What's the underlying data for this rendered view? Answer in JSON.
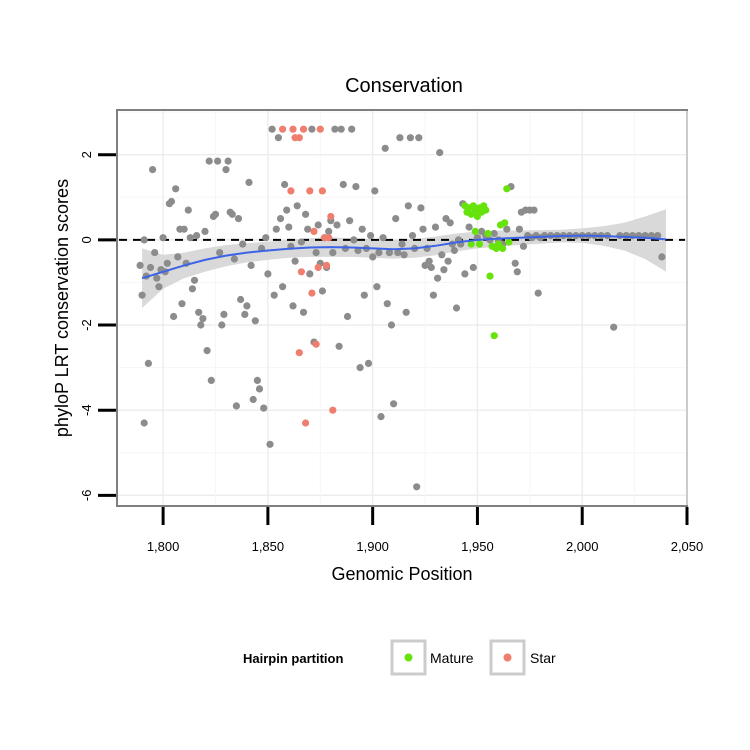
{
  "chart_data": {
    "type": "scatter",
    "title": "Conservation",
    "xlabel": "Genomic Position",
    "ylabel": "phyloP LRT conservation scores",
    "xlim": [
      1778,
      2050
    ],
    "ylim": [
      -6.25,
      3.05
    ],
    "x_ticks": [
      1800,
      1850,
      1900,
      1950,
      2000,
      2050
    ],
    "x_tick_labels": [
      "1,800",
      "1,850",
      "1,900",
      "1,950",
      "2,000",
      "2,050"
    ],
    "y_ticks": [
      -6,
      -4,
      -2,
      0,
      2
    ],
    "y_tick_labels": [
      "-6",
      "-4",
      "-2",
      "0",
      "2"
    ],
    "reference_line": {
      "y": 0,
      "style": "dashed"
    },
    "legend": {
      "title": "Hairpin partition",
      "entries": [
        {
          "label": "Mature",
          "color": "#66e30b"
        },
        {
          "label": "Star",
          "color": "#f07e6e"
        }
      ]
    },
    "colors": {
      "other": "#8c8c8c",
      "mature": "#66e30b",
      "star": "#f07e6e",
      "smooth": "#3d63e6",
      "band": "#d2d2d2"
    },
    "series": [
      {
        "name": "Other",
        "points": [
          [
            1789,
            -0.6
          ],
          [
            1790,
            -1.3
          ],
          [
            1791,
            0.0
          ],
          [
            1791,
            -4.3
          ],
          [
            1792,
            -0.85
          ],
          [
            1793,
            -2.9
          ],
          [
            1794,
            -0.65
          ],
          [
            1795,
            1.65
          ],
          [
            1796,
            -0.3
          ],
          [
            1797,
            -0.9
          ],
          [
            1798,
            -1.1
          ],
          [
            1799,
            -0.7
          ],
          [
            1800,
            0.05
          ],
          [
            1801,
            -0.75
          ],
          [
            1802,
            -0.55
          ],
          [
            1803,
            0.85
          ],
          [
            1804,
            0.9
          ],
          [
            1805,
            -1.8
          ],
          [
            1806,
            1.2
          ],
          [
            1807,
            -0.4
          ],
          [
            1808,
            0.25
          ],
          [
            1809,
            -1.5
          ],
          [
            1810,
            0.25
          ],
          [
            1811,
            -0.55
          ],
          [
            1812,
            0.7
          ],
          [
            1813,
            0.05
          ],
          [
            1814,
            -1.15
          ],
          [
            1815,
            -0.95
          ],
          [
            1816,
            0.1
          ],
          [
            1817,
            -1.7
          ],
          [
            1818,
            -2.0
          ],
          [
            1819,
            -1.85
          ],
          [
            1820,
            0.2
          ],
          [
            1821,
            -2.6
          ],
          [
            1822,
            1.85
          ],
          [
            1823,
            -3.3
          ],
          [
            1824,
            0.55
          ],
          [
            1825,
            0.6
          ],
          [
            1826,
            1.85
          ],
          [
            1827,
            -0.3
          ],
          [
            1828,
            -2.0
          ],
          [
            1829,
            -1.75
          ],
          [
            1830,
            1.65
          ],
          [
            1831,
            1.85
          ],
          [
            1832,
            0.65
          ],
          [
            1833,
            0.6
          ],
          [
            1834,
            -0.45
          ],
          [
            1835,
            -3.9
          ],
          [
            1836,
            0.5
          ],
          [
            1837,
            -1.4
          ],
          [
            1838,
            -0.1
          ],
          [
            1839,
            -1.75
          ],
          [
            1840,
            -1.55
          ],
          [
            1841,
            1.35
          ],
          [
            1842,
            -0.6
          ],
          [
            1843,
            -3.75
          ],
          [
            1844,
            -1.9
          ],
          [
            1845,
            -3.3
          ],
          [
            1846,
            -3.5
          ],
          [
            1847,
            -0.2
          ],
          [
            1848,
            -3.95
          ],
          [
            1849,
            0.05
          ],
          [
            1850,
            -0.8
          ],
          [
            1851,
            -4.8
          ],
          [
            1852,
            2.6
          ],
          [
            1853,
            -1.3
          ],
          [
            1854,
            0.25
          ],
          [
            1855,
            2.4
          ],
          [
            1856,
            0.5
          ],
          [
            1857,
            -1.1
          ],
          [
            1858,
            1.3
          ],
          [
            1859,
            0.7
          ],
          [
            1860,
            0.3
          ],
          [
            1861,
            -0.15
          ],
          [
            1862,
            -1.55
          ],
          [
            1863,
            -0.5
          ],
          [
            1864,
            0.8
          ],
          [
            1866,
            -0.05
          ],
          [
            1867,
            -1.7
          ],
          [
            1868,
            0.6
          ],
          [
            1869,
            0.25
          ],
          [
            1870,
            -0.8
          ],
          [
            1871,
            2.6
          ],
          [
            1872,
            -2.4
          ],
          [
            1873,
            -0.3
          ],
          [
            1874,
            0.35
          ],
          [
            1875,
            -0.55
          ],
          [
            1876,
            -1.2
          ],
          [
            1877,
            0.05
          ],
          [
            1878,
            -0.65
          ],
          [
            1879,
            0.2
          ],
          [
            1880,
            0.45
          ],
          [
            1881,
            -0.3
          ],
          [
            1882,
            2.6
          ],
          [
            1883,
            0.35
          ],
          [
            1884,
            -2.5
          ],
          [
            1885,
            2.6
          ],
          [
            1886,
            1.3
          ],
          [
            1887,
            -0.2
          ],
          [
            1888,
            -1.8
          ],
          [
            1889,
            0.45
          ],
          [
            1890,
            2.6
          ],
          [
            1891,
            0.0
          ],
          [
            1892,
            1.25
          ],
          [
            1893,
            -0.25
          ],
          [
            1894,
            -3.0
          ],
          [
            1895,
            0.25
          ],
          [
            1896,
            -1.3
          ],
          [
            1897,
            -0.2
          ],
          [
            1898,
            -2.9
          ],
          [
            1899,
            0.1
          ],
          [
            1900,
            -0.4
          ],
          [
            1901,
            1.15
          ],
          [
            1902,
            -1.1
          ],
          [
            1903,
            -0.3
          ],
          [
            1904,
            -4.15
          ],
          [
            1905,
            0.05
          ],
          [
            1906,
            2.15
          ],
          [
            1907,
            -1.5
          ],
          [
            1908,
            -0.3
          ],
          [
            1909,
            -2.0
          ],
          [
            1910,
            -3.85
          ],
          [
            1911,
            0.5
          ],
          [
            1912,
            -0.3
          ],
          [
            1913,
            2.4
          ],
          [
            1914,
            -0.1
          ],
          [
            1915,
            -0.35
          ],
          [
            1916,
            -1.7
          ],
          [
            1917,
            0.8
          ],
          [
            1918,
            2.4
          ],
          [
            1919,
            0.1
          ],
          [
            1920,
            -0.2
          ],
          [
            1921,
            -5.8
          ],
          [
            1922,
            2.4
          ],
          [
            1923,
            0.75
          ],
          [
            1924,
            0.25
          ],
          [
            1925,
            -0.6
          ],
          [
            1926,
            -0.2
          ],
          [
            1927,
            -0.5
          ],
          [
            1928,
            -0.65
          ],
          [
            1929,
            -1.3
          ],
          [
            1930,
            0.3
          ],
          [
            1931,
            -0.9
          ],
          [
            1932,
            2.05
          ],
          [
            1933,
            -0.35
          ],
          [
            1934,
            -0.7
          ],
          [
            1935,
            0.5
          ],
          [
            1936,
            -0.5
          ],
          [
            1937,
            0.4
          ],
          [
            1938,
            -0.1
          ],
          [
            1939,
            -0.25
          ],
          [
            1940,
            -1.6
          ],
          [
            1941,
            0.0
          ],
          [
            1942,
            -0.1
          ],
          [
            1943,
            0.85
          ],
          [
            1944,
            -0.8
          ],
          [
            1946,
            0.3
          ],
          [
            1948,
            -0.65
          ],
          [
            1950,
            0.05
          ],
          [
            1952,
            0.2
          ],
          [
            1954,
            0.1
          ],
          [
            1956,
            0.0
          ],
          [
            1958,
            0.15
          ],
          [
            1960,
            0.0
          ],
          [
            1962,
            -0.1
          ],
          [
            1964,
            0.25
          ],
          [
            1966,
            1.25
          ],
          [
            1968,
            -0.55
          ],
          [
            1969,
            -0.75
          ],
          [
            1970,
            0.25
          ],
          [
            1971,
            0.65
          ],
          [
            1972,
            -0.15
          ],
          [
            1973,
            0.7
          ],
          [
            1974,
            0.1
          ],
          [
            1975,
            0.7
          ],
          [
            1976,
            0.05
          ],
          [
            1977,
            0.7
          ],
          [
            1978,
            0.1
          ],
          [
            1979,
            -1.25
          ],
          [
            1980,
            0.05
          ],
          [
            1982,
            0.1
          ],
          [
            1985,
            0.1
          ],
          [
            1988,
            0.1
          ],
          [
            1991,
            0.1
          ],
          [
            1994,
            0.1
          ],
          [
            1997,
            0.1
          ],
          [
            2000,
            0.1
          ],
          [
            2003,
            0.1
          ],
          [
            2006,
            0.1
          ],
          [
            2009,
            0.1
          ],
          [
            2012,
            0.1
          ],
          [
            2015,
            -2.05
          ],
          [
            2018,
            0.1
          ],
          [
            2021,
            0.1
          ],
          [
            2024,
            0.1
          ],
          [
            2027,
            0.1
          ],
          [
            2030,
            0.1
          ],
          [
            2033,
            0.1
          ],
          [
            2036,
            0.1
          ],
          [
            2038,
            -0.4
          ]
        ]
      },
      {
        "name": "Mature",
        "points": [
          [
            1944,
            0.8
          ],
          [
            1945,
            0.65
          ],
          [
            1946,
            0.75
          ],
          [
            1947,
            0.6
          ],
          [
            1948,
            0.8
          ],
          [
            1949,
            0.7
          ],
          [
            1950,
            0.55
          ],
          [
            1951,
            0.75
          ],
          [
            1952,
            0.65
          ],
          [
            1953,
            0.8
          ],
          [
            1954,
            0.7
          ],
          [
            1955,
            0.15
          ],
          [
            1956,
            -0.85
          ],
          [
            1957,
            -0.15
          ],
          [
            1958,
            -2.25
          ],
          [
            1959,
            -0.2
          ],
          [
            1960,
            -0.1
          ],
          [
            1961,
            0.35
          ],
          [
            1962,
            -0.2
          ],
          [
            1963,
            0.4
          ],
          [
            1964,
            1.2
          ],
          [
            1965,
            -0.05
          ],
          [
            1947,
            -0.1
          ],
          [
            1949,
            0.2
          ],
          [
            1951,
            -0.1
          ]
        ]
      },
      {
        "name": "Star",
        "points": [
          [
            1857,
            2.6
          ],
          [
            1861,
            1.15
          ],
          [
            1862,
            2.6
          ],
          [
            1863,
            2.4
          ],
          [
            1865,
            2.4
          ],
          [
            1865,
            -2.65
          ],
          [
            1866,
            -0.75
          ],
          [
            1867,
            2.6
          ],
          [
            1868,
            -4.3
          ],
          [
            1870,
            1.15
          ],
          [
            1871,
            -1.25
          ],
          [
            1872,
            0.2
          ],
          [
            1873,
            -2.45
          ],
          [
            1874,
            -0.65
          ],
          [
            1875,
            2.6
          ],
          [
            1876,
            1.15
          ],
          [
            1877,
            0.05
          ],
          [
            1878,
            -0.6
          ],
          [
            1879,
            0.05
          ],
          [
            1880,
            0.55
          ],
          [
            1881,
            -4.0
          ]
        ]
      }
    ],
    "smooth_curve": [
      [
        1790,
        -0.9
      ],
      [
        1800,
        -0.75
      ],
      [
        1810,
        -0.6
      ],
      [
        1820,
        -0.47
      ],
      [
        1830,
        -0.37
      ],
      [
        1840,
        -0.3
      ],
      [
        1850,
        -0.25
      ],
      [
        1860,
        -0.21
      ],
      [
        1870,
        -0.18
      ],
      [
        1880,
        -0.17
      ],
      [
        1890,
        -0.18
      ],
      [
        1900,
        -0.2
      ],
      [
        1910,
        -0.22
      ],
      [
        1920,
        -0.2
      ],
      [
        1930,
        -0.14
      ],
      [
        1940,
        -0.06
      ],
      [
        1950,
        0.0
      ],
      [
        1960,
        0.03
      ],
      [
        1970,
        0.05
      ],
      [
        1980,
        0.07
      ],
      [
        1990,
        0.09
      ],
      [
        2000,
        0.1
      ],
      [
        2010,
        0.09
      ],
      [
        2020,
        0.07
      ],
      [
        2030,
        0.05
      ],
      [
        2040,
        0.01
      ]
    ],
    "confidence_band": [
      [
        1790,
        -1.6,
        -0.2
      ],
      [
        1800,
        -1.15,
        -0.35
      ],
      [
        1810,
        -0.9,
        -0.3
      ],
      [
        1820,
        -0.75,
        -0.2
      ],
      [
        1830,
        -0.62,
        -0.12
      ],
      [
        1840,
        -0.53,
        -0.08
      ],
      [
        1850,
        -0.47,
        -0.04
      ],
      [
        1860,
        -0.42,
        0.0
      ],
      [
        1870,
        -0.4,
        0.04
      ],
      [
        1880,
        -0.4,
        0.06
      ],
      [
        1890,
        -0.4,
        0.04
      ],
      [
        1900,
        -0.42,
        0.02
      ],
      [
        1910,
        -0.44,
        0.0
      ],
      [
        1920,
        -0.42,
        0.02
      ],
      [
        1930,
        -0.36,
        0.08
      ],
      [
        1940,
        -0.27,
        0.15
      ],
      [
        1950,
        -0.2,
        0.2
      ],
      [
        1960,
        -0.16,
        0.22
      ],
      [
        1970,
        -0.12,
        0.22
      ],
      [
        1980,
        -0.09,
        0.23
      ],
      [
        1990,
        -0.06,
        0.24
      ],
      [
        2000,
        -0.07,
        0.27
      ],
      [
        2010,
        -0.14,
        0.32
      ],
      [
        2020,
        -0.25,
        0.4
      ],
      [
        2030,
        -0.45,
        0.55
      ],
      [
        2040,
        -0.75,
        0.72
      ]
    ]
  }
}
